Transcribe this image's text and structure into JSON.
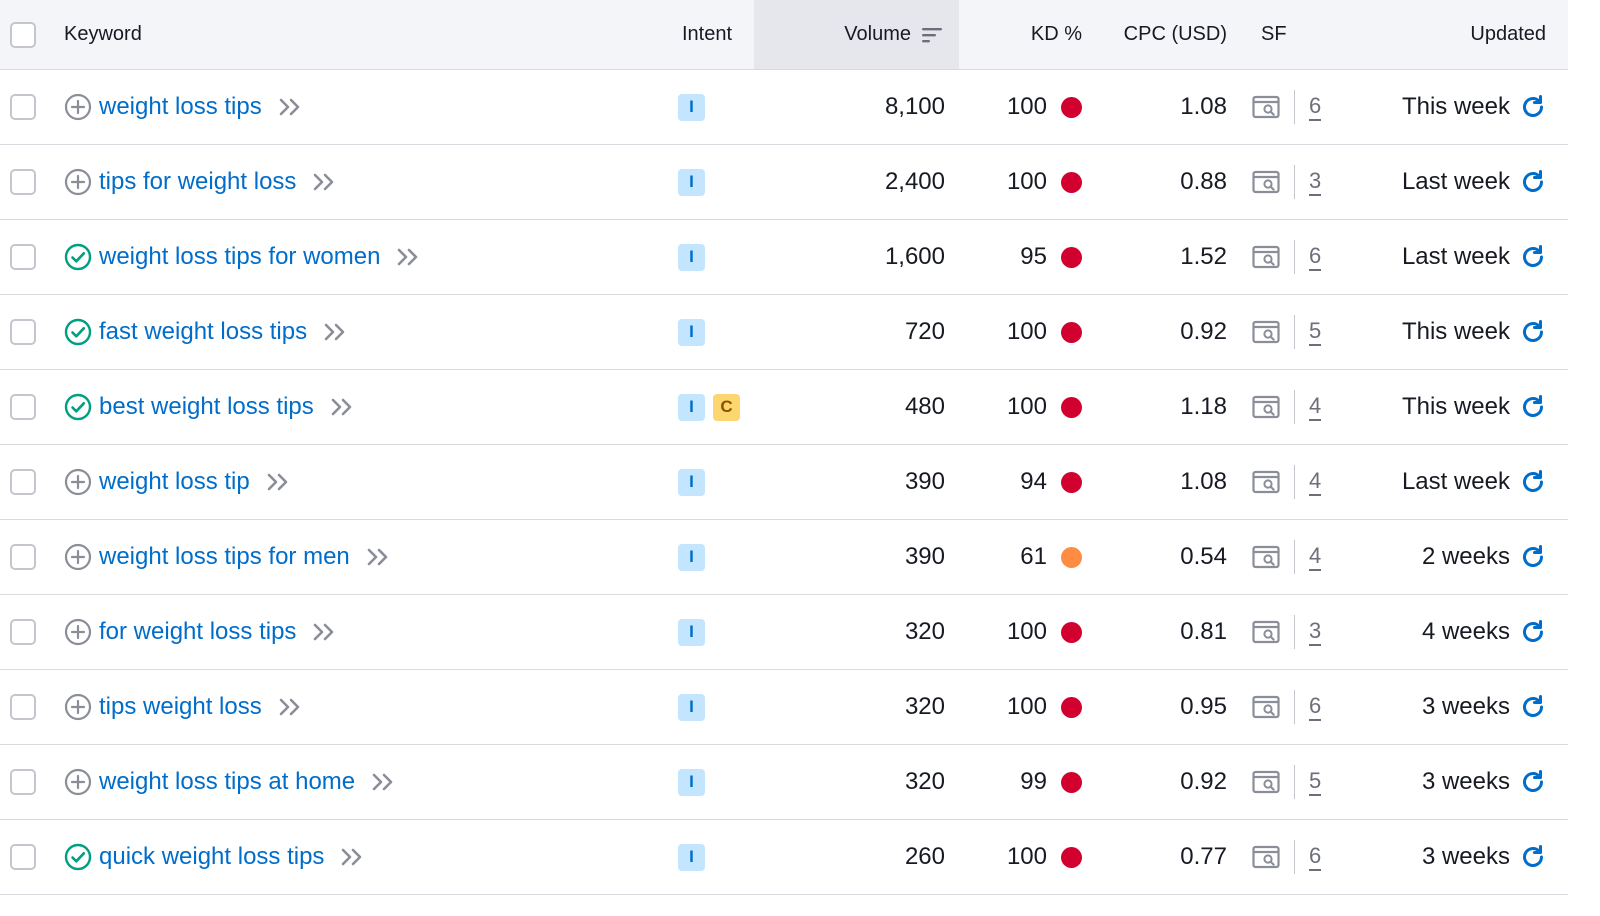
{
  "header": {
    "keyword": "Keyword",
    "intent": "Intent",
    "volume": "Volume",
    "kd": "KD %",
    "cpc": "CPC (USD)",
    "sf": "SF",
    "updated": "Updated"
  },
  "colors": {
    "link": "#006dca",
    "kd_red": "#d1002f",
    "kd_orange": "#ff8c43",
    "check_green": "#009f81",
    "intent_I_bg": "#c4e5fe",
    "intent_C_bg": "#fcd66f"
  },
  "rows": [
    {
      "keyword": "weight loss tips",
      "status_icon": "plus-circle-icon",
      "intents": [
        "I"
      ],
      "volume": "8,100",
      "kd": "100",
      "kd_color": "red",
      "cpc": "1.08",
      "sf": "6",
      "updated": "This week"
    },
    {
      "keyword": "tips for weight loss",
      "status_icon": "plus-circle-icon",
      "intents": [
        "I"
      ],
      "volume": "2,400",
      "kd": "100",
      "kd_color": "red",
      "cpc": "0.88",
      "sf": "3",
      "updated": "Last week"
    },
    {
      "keyword": "weight loss tips for women",
      "status_icon": "check-circle-icon",
      "intents": [
        "I"
      ],
      "volume": "1,600",
      "kd": "95",
      "kd_color": "red",
      "cpc": "1.52",
      "sf": "6",
      "updated": "Last week"
    },
    {
      "keyword": "fast weight loss tips",
      "status_icon": "check-circle-icon",
      "intents": [
        "I"
      ],
      "volume": "720",
      "kd": "100",
      "kd_color": "red",
      "cpc": "0.92",
      "sf": "5",
      "updated": "This week"
    },
    {
      "keyword": "best weight loss tips",
      "status_icon": "check-circle-icon",
      "intents": [
        "I",
        "C"
      ],
      "volume": "480",
      "kd": "100",
      "kd_color": "red",
      "cpc": "1.18",
      "sf": "4",
      "updated": "This week"
    },
    {
      "keyword": "weight loss tip",
      "status_icon": "plus-circle-icon",
      "intents": [
        "I"
      ],
      "volume": "390",
      "kd": "94",
      "kd_color": "red",
      "cpc": "1.08",
      "sf": "4",
      "updated": "Last week"
    },
    {
      "keyword": "weight loss tips for men",
      "status_icon": "plus-circle-icon",
      "intents": [
        "I"
      ],
      "volume": "390",
      "kd": "61",
      "kd_color": "orange",
      "cpc": "0.54",
      "sf": "4",
      "updated": "2 weeks"
    },
    {
      "keyword": "for weight loss tips",
      "status_icon": "plus-circle-icon",
      "intents": [
        "I"
      ],
      "volume": "320",
      "kd": "100",
      "kd_color": "red",
      "cpc": "0.81",
      "sf": "3",
      "updated": "4 weeks"
    },
    {
      "keyword": "tips weight loss",
      "status_icon": "plus-circle-icon",
      "intents": [
        "I"
      ],
      "volume": "320",
      "kd": "100",
      "kd_color": "red",
      "cpc": "0.95",
      "sf": "6",
      "updated": "3 weeks"
    },
    {
      "keyword": "weight loss tips at home",
      "status_icon": "plus-circle-icon",
      "intents": [
        "I"
      ],
      "volume": "320",
      "kd": "99",
      "kd_color": "red",
      "cpc": "0.92",
      "sf": "5",
      "updated": "3 weeks"
    },
    {
      "keyword": "quick weight loss tips",
      "status_icon": "check-circle-icon",
      "intents": [
        "I"
      ],
      "volume": "260",
      "kd": "100",
      "kd_color": "red",
      "cpc": "0.77",
      "sf": "6",
      "updated": "3 weeks"
    }
  ]
}
